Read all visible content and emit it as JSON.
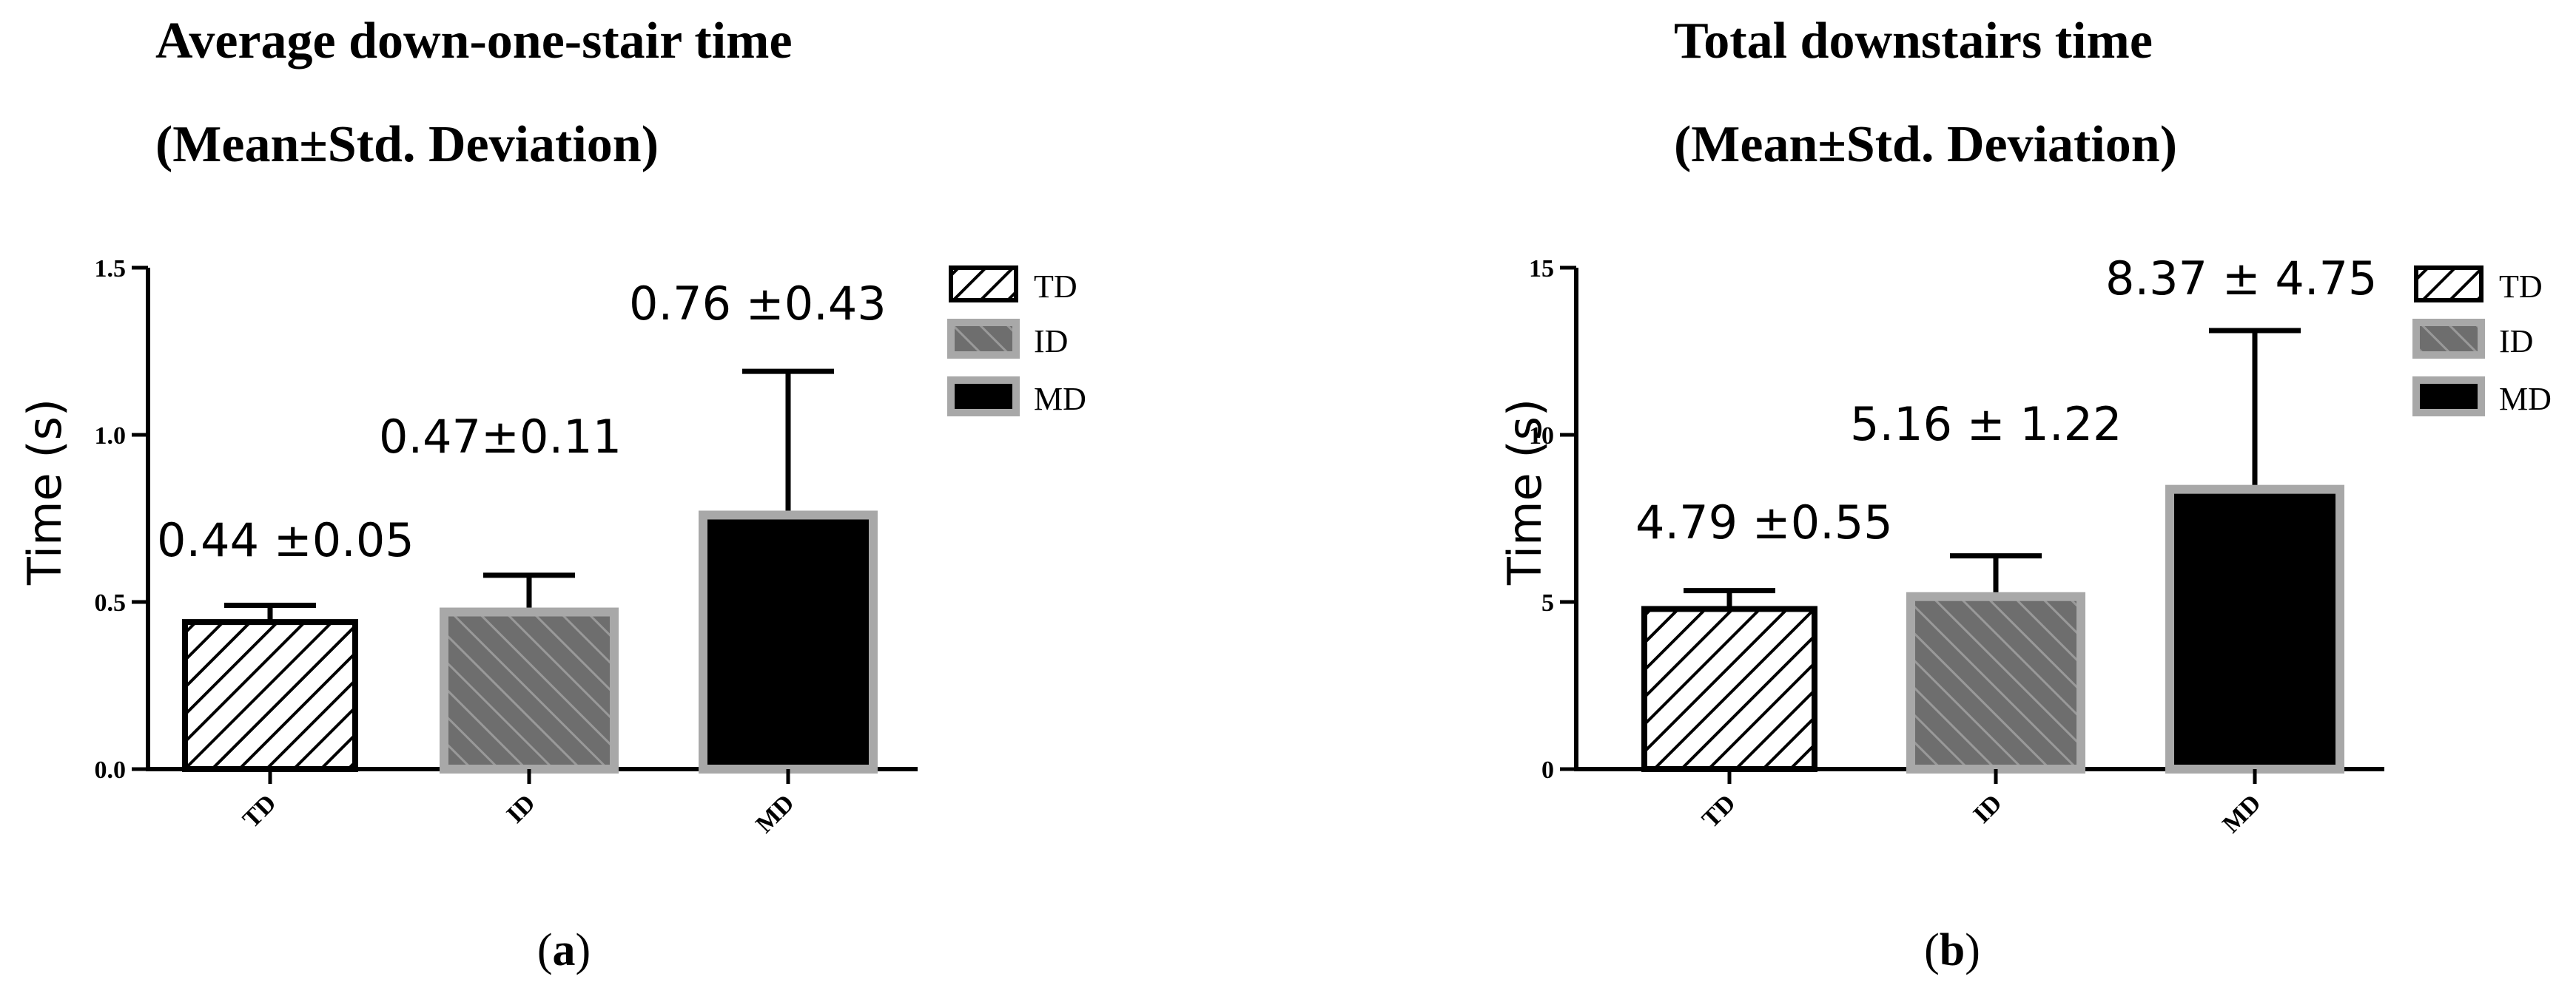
{
  "chart_data": [
    {
      "type": "bar",
      "title": "Average down-one-stair time",
      "subtitle": "(Mean±Std. Deviation)",
      "panel_label": "a",
      "ylabel": "Time (s)",
      "categories": [
        "TD",
        "ID",
        "MD"
      ],
      "values": [
        0.44,
        0.47,
        0.76
      ],
      "errors": [
        0.05,
        0.11,
        0.43
      ],
      "data_labels": [
        "0.44 ±0.05",
        "0.47±0.11",
        "0.76 ±0.43"
      ],
      "ylim": [
        0,
        1.5
      ],
      "yticks": [
        0.0,
        0.5,
        1.0,
        1.5
      ],
      "ytick_labels": [
        "0.0",
        "0.5",
        "1.0",
        "1.5"
      ],
      "legend": [
        "TD",
        "ID",
        "MD"
      ],
      "legend_position": "top-right",
      "grid": false
    },
    {
      "type": "bar",
      "title": "Total downstairs time",
      "subtitle": "(Mean±Std. Deviation)",
      "panel_label": "b",
      "ylabel": "Time (s)",
      "categories": [
        "TD",
        "ID",
        "MD"
      ],
      "values": [
        4.79,
        5.16,
        8.37
      ],
      "errors": [
        0.55,
        1.22,
        4.75
      ],
      "data_labels": [
        "4.79 ±0.55",
        "5.16 ± 1.22",
        "8.37 ± 4.75"
      ],
      "ylim": [
        0,
        15
      ],
      "yticks": [
        0,
        5,
        10,
        15
      ],
      "ytick_labels": [
        "0",
        "5",
        "10",
        "15"
      ],
      "legend": [
        "TD",
        "ID",
        "MD"
      ],
      "legend_position": "top-right",
      "grid": false
    }
  ],
  "colors": {
    "td_fill": "#ffffff",
    "td_stroke": "#000000",
    "id_fill": "#6e6e6e",
    "id_stroke": "#a8a8a8",
    "md_fill": "#000000",
    "md_stroke": "#a8a8a8"
  }
}
